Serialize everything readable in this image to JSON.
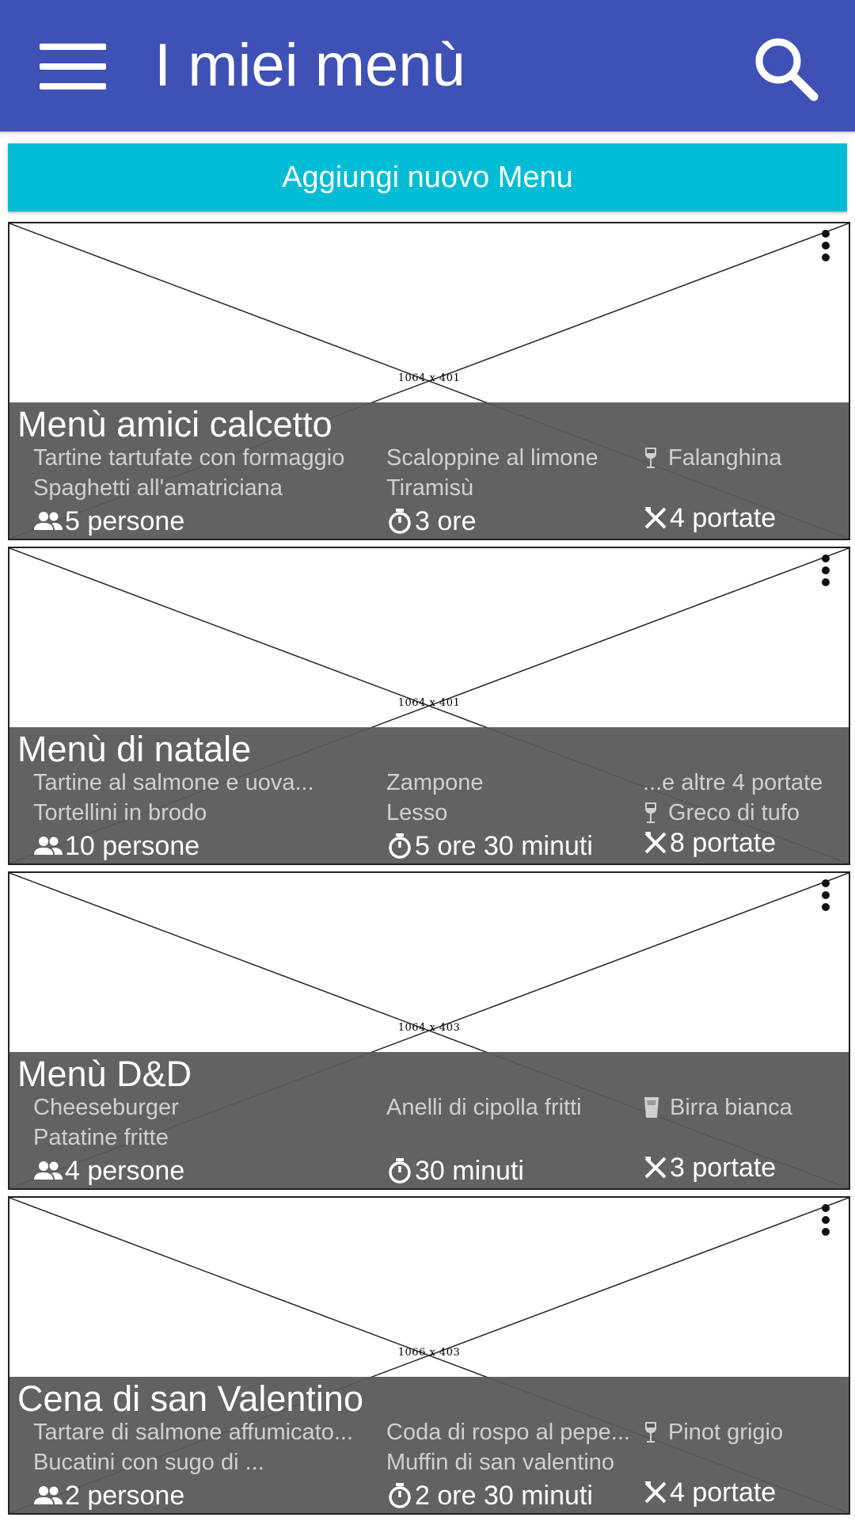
{
  "appbar": {
    "title": "I miei menù",
    "menu_icon": "hamburger-menu-icon",
    "search_icon": "search-icon",
    "color": "#3f51b5"
  },
  "add_button": {
    "label": "Aggiungi nuovo Menu",
    "color": "#00bcd4"
  },
  "cards": [
    {
      "image_label": "1064 x 401",
      "title": "Menù amici calcetto",
      "dish1": "Tartine tartufate con formaggio",
      "dish2": "Spaghetti all'amatriciana",
      "dish3": "Scaloppine al limone",
      "dish4": "Tiramisù",
      "extra": "",
      "drink": "Falanghina",
      "drink_icon": "wine-glass-icon",
      "people": "5 persone",
      "time": "3 ore",
      "courses": "4 portate"
    },
    {
      "image_label": "1064 x 401",
      "title": "Menù di natale",
      "dish1": "Tartine al salmone e uova...",
      "dish2": "Tortellini in brodo",
      "dish3": "Zampone",
      "dish4": "Lesso",
      "extra": "...e altre 4 portate",
      "drink": "Greco di tufo",
      "drink_icon": "wine-glass-icon",
      "people": "10 persone",
      "time": "5 ore 30 minuti",
      "courses": "8 portate"
    },
    {
      "image_label": "1064 x 403",
      "title": "Menù D&D",
      "dish1": "Cheeseburger",
      "dish2": "Patatine fritte",
      "dish3": "Anelli di cipolla fritti",
      "dish4": "",
      "extra": "",
      "drink": "Birra bianca",
      "drink_icon": "beer-glass-icon",
      "people": "4 persone",
      "time": "30 minuti",
      "courses": "3 portate"
    },
    {
      "image_label": "1066 x 403",
      "title": "Cena di san Valentino",
      "dish1": "Tartare di salmone affumicato...",
      "dish2": "Bucatini con sugo di ...",
      "dish3": "Coda di rospo al pepe...",
      "dish4": "Muffin di san valentino",
      "extra": "",
      "drink": "Pinot grigio",
      "drink_icon": "wine-glass-icon",
      "people": "2 persone",
      "time": "2 ore 30 minuti",
      "courses": "4 portate"
    }
  ],
  "icons": {
    "people": "people-icon",
    "time": "timer-icon",
    "courses": "cutlery-icon",
    "overflow": "more-vert-icon"
  }
}
